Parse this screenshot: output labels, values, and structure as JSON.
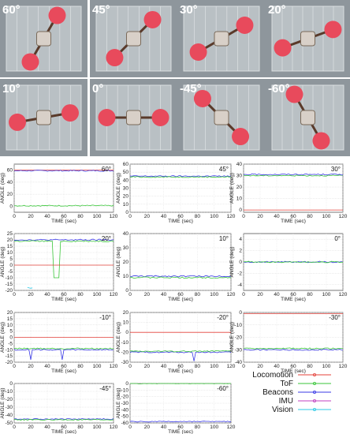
{
  "photos": [
    {
      "label": "60°"
    },
    {
      "label": "45°"
    },
    {
      "label": "30°"
    },
    {
      "label": "20°"
    },
    {
      "label": "10°"
    },
    {
      "label": "0°"
    },
    {
      "label": "-45°"
    },
    {
      "label": "-60°"
    }
  ],
  "axis_text": {
    "xlabel": "TIME (sec)",
    "ylabel": "ANGLE (deg)"
  },
  "legend": {
    "items": [
      {
        "name": "Locomotion",
        "color": "#e4403a"
      },
      {
        "name": "ToF",
        "color": "#39c639"
      },
      {
        "name": "Beacons",
        "color": "#3a3ae6"
      },
      {
        "name": "IMU",
        "color": "#c040c0"
      },
      {
        "name": "Vision",
        "color": "#2cc9e6"
      }
    ]
  },
  "chart_data": [
    {
      "type": "line",
      "title": "60°",
      "x_ticks": [
        0,
        20,
        40,
        60,
        80,
        100,
        120
      ],
      "y_ticks": [
        60,
        40,
        20,
        0
      ],
      "ylim": [
        -10,
        70
      ],
      "xlim": [
        0,
        120
      ],
      "grid": true,
      "series": [
        {
          "name": "Locomotion",
          "values_note": "",
          "level": 60,
          "range": [
            0,
            120
          ]
        },
        {
          "name": "Beacons",
          "level": 59,
          "range": [
            0,
            120
          ]
        },
        {
          "name": "ToF",
          "level": 1,
          "range": [
            0,
            120
          ]
        }
      ]
    },
    {
      "type": "line",
      "title": "45°",
      "x_ticks": [
        0,
        20,
        40,
        60,
        80,
        100,
        120
      ],
      "y_ticks": [
        60,
        50,
        40,
        30,
        20,
        10,
        0
      ],
      "ylim": [
        0,
        60
      ],
      "xlim": [
        0,
        120
      ],
      "grid": true,
      "series": [
        {
          "name": "Beacons",
          "level": 45
        },
        {
          "name": "ToF",
          "level": 44
        }
      ]
    },
    {
      "type": "line",
      "title": "30°",
      "x_ticks": [
        0,
        20,
        40,
        60,
        80,
        100,
        120
      ],
      "y_ticks": [
        40,
        30,
        20,
        10,
        0
      ],
      "ylim": [
        -2,
        40
      ],
      "xlim": [
        0,
        120
      ],
      "grid": true,
      "series": [
        {
          "name": "ToF",
          "level": 30
        },
        {
          "name": "Beacons",
          "level": 31
        },
        {
          "name": "Locomotion",
          "level": 0
        }
      ]
    },
    {
      "type": "line",
      "title": "20°",
      "x_ticks": [
        0,
        20,
        40,
        60,
        80,
        100,
        120
      ],
      "y_ticks": [
        25,
        20,
        15,
        10,
        5,
        0,
        -5,
        -10,
        -15,
        -20
      ],
      "ylim": [
        -20,
        25
      ],
      "xlim": [
        0,
        120
      ],
      "grid": true,
      "series": [
        {
          "name": "Beacons",
          "level": 20
        },
        {
          "name": "ToF",
          "level": 19
        },
        {
          "name": "Vision",
          "level": -18
        },
        {
          "name": "Locomotion",
          "level": 0
        }
      ]
    },
    {
      "type": "line",
      "title": "10°",
      "x_ticks": [
        0,
        20,
        40,
        60,
        80,
        100,
        120
      ],
      "y_ticks": [
        40,
        30,
        20,
        10,
        0
      ],
      "ylim": [
        0,
        40
      ],
      "xlim": [
        0,
        120
      ],
      "grid": true,
      "series": [
        {
          "name": "Beacons",
          "level": 10
        },
        {
          "name": "ToF",
          "level": 9
        }
      ]
    },
    {
      "type": "line",
      "title": "0°",
      "x_ticks": [
        0,
        20,
        40,
        60,
        80,
        100,
        120
      ],
      "y_ticks": [
        4,
        2,
        0,
        -2,
        -4
      ],
      "ylim": [
        -5,
        5
      ],
      "xlim": [
        0,
        120
      ],
      "grid": true,
      "series": [
        {
          "name": "Beacons",
          "level": 0
        },
        {
          "name": "ToF",
          "level": 0
        }
      ]
    },
    {
      "type": "line",
      "title": "-10°",
      "x_ticks": [
        0,
        20,
        40,
        60,
        80,
        100,
        120
      ],
      "y_ticks": [
        20,
        15,
        10,
        5,
        0,
        -5,
        -10,
        -15,
        -20
      ],
      "ylim": [
        -20,
        20
      ],
      "xlim": [
        0,
        120
      ],
      "grid": true,
      "series": [
        {
          "name": "Beacons",
          "level": -10
        },
        {
          "name": "ToF",
          "level": -9
        },
        {
          "name": "Locomotion",
          "level": 0
        }
      ]
    },
    {
      "type": "line",
      "title": "-20°",
      "x_ticks": [
        0,
        20,
        40,
        60,
        80,
        100,
        120
      ],
      "y_ticks": [
        20,
        10,
        0,
        -10,
        -20,
        -30
      ],
      "ylim": [
        -30,
        20
      ],
      "xlim": [
        0,
        120
      ],
      "grid": true,
      "series": [
        {
          "name": "Beacons",
          "level": -20
        },
        {
          "name": "ToF",
          "level": -19
        },
        {
          "name": "Locomotion",
          "level": 0
        }
      ]
    },
    {
      "type": "line",
      "title": "-30°",
      "x_ticks": [
        0,
        20,
        40,
        60,
        80,
        100,
        120
      ],
      "y_ticks": [
        0,
        -10,
        -20,
        -30,
        -40
      ],
      "ylim": [
        -40,
        0
      ],
      "xlim": [
        0,
        120
      ],
      "grid": true,
      "series": [
        {
          "name": "Beacons",
          "level": -30
        },
        {
          "name": "ToF",
          "level": -29
        },
        {
          "name": "Locomotion",
          "level": -1
        }
      ]
    },
    {
      "type": "line",
      "title": "-45°",
      "x_ticks": [
        0,
        20,
        40,
        60,
        80,
        100,
        120
      ],
      "y_ticks": [
        0,
        -10,
        -20,
        -30,
        -40,
        -50
      ],
      "ylim": [
        -50,
        0
      ],
      "xlim": [
        0,
        120
      ],
      "grid": true,
      "series": [
        {
          "name": "Beacons",
          "level": -45
        },
        {
          "name": "ToF",
          "level": -46
        }
      ]
    },
    {
      "type": "line",
      "title": "-60°",
      "x_ticks": [
        0,
        20,
        40,
        60,
        80,
        100,
        120
      ],
      "y_ticks": [
        0,
        -10,
        -20,
        -30,
        -40,
        -50,
        -60
      ],
      "ylim": [
        -60,
        0
      ],
      "xlim": [
        0,
        120
      ],
      "grid": true,
      "series": [
        {
          "name": "ToF",
          "level": 0
        },
        {
          "name": "Beacons",
          "level": -58
        }
      ]
    }
  ]
}
